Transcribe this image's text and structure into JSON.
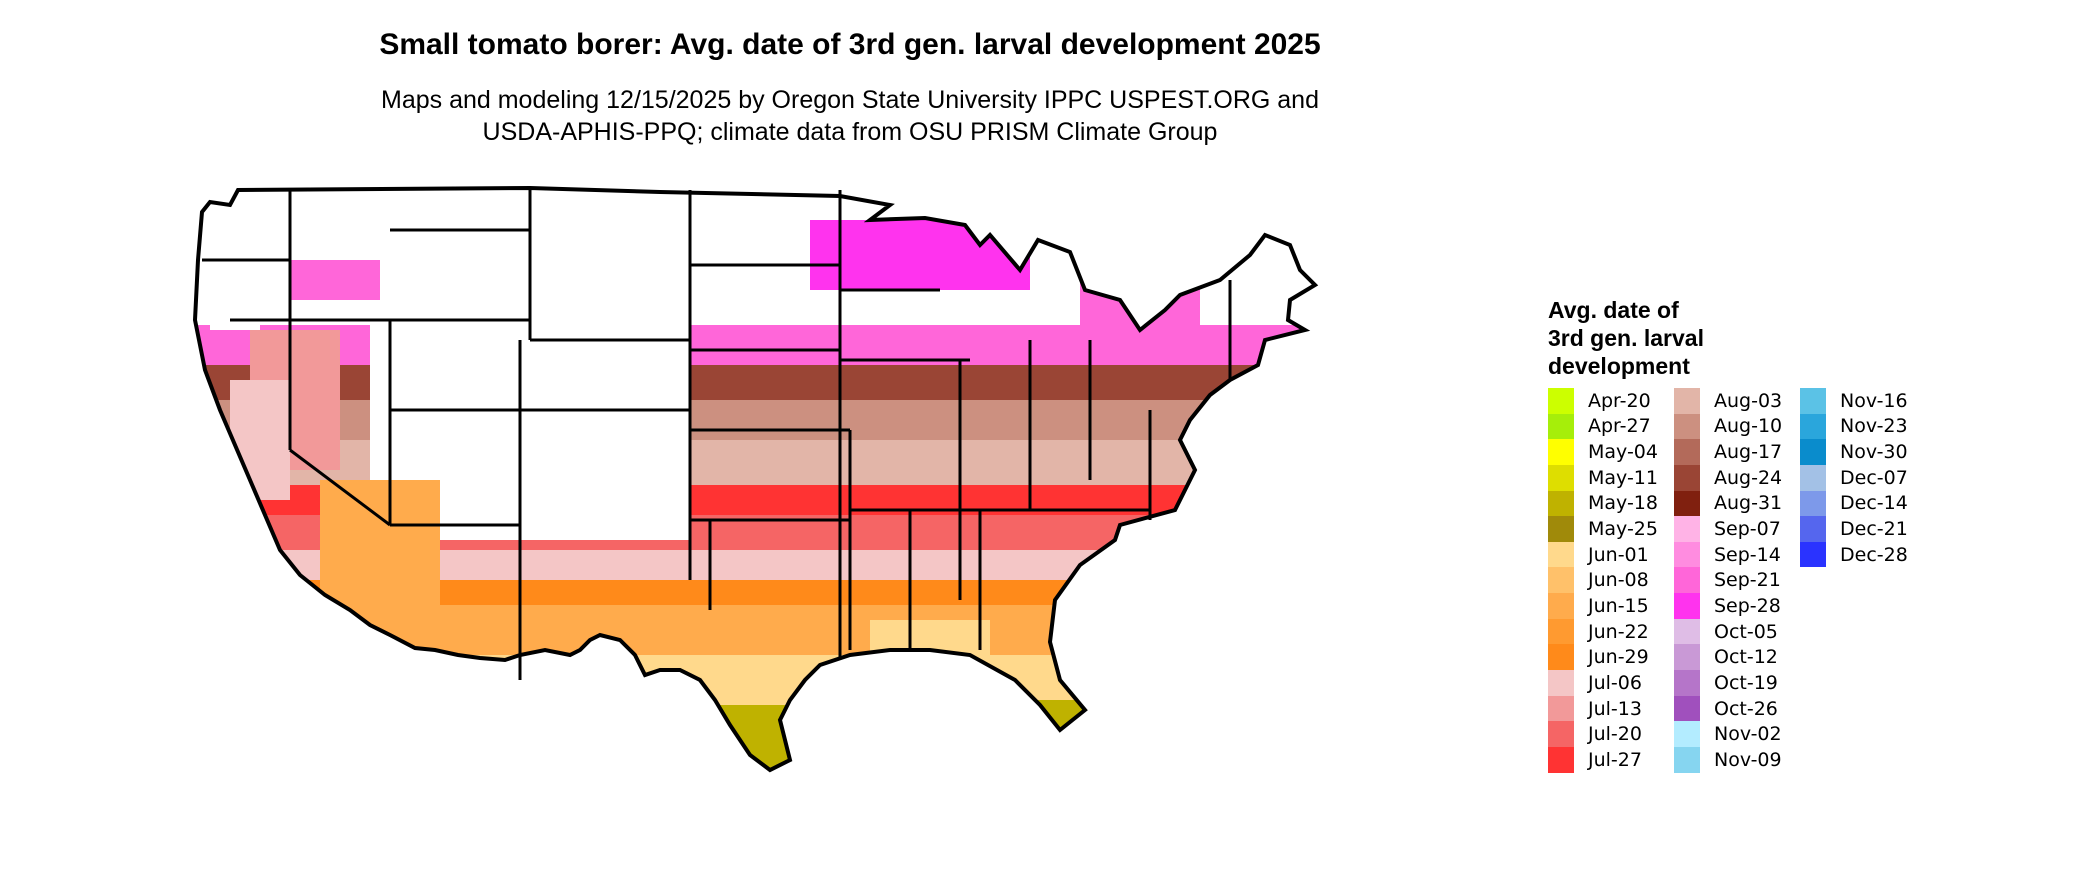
{
  "title": "Small tomato borer: Avg. date of 3rd gen. larval development 2025",
  "subtitle_line1": "Maps and modeling 12/15/2025 by Oregon State University IPPC USPEST.ORG and",
  "subtitle_line2": "USDA-APHIS-PPQ; climate data from OSU PRISM Climate Group",
  "legend": {
    "title_lines": [
      "Avg. date of",
      "3rd gen. larval",
      "development"
    ],
    "columns": [
      [
        {
          "label": "Apr-20",
          "color": "#ccff00"
        },
        {
          "label": "Apr-27",
          "color": "#a6ee0a"
        },
        {
          "label": "May-04",
          "color": "#ffff00"
        },
        {
          "label": "May-11",
          "color": "#dede00"
        },
        {
          "label": "May-18",
          "color": "#bfb200"
        },
        {
          "label": "May-25",
          "color": "#a08a0a"
        },
        {
          "label": "Jun-01",
          "color": "#ffd98c"
        },
        {
          "label": "Jun-08",
          "color": "#ffc16a"
        },
        {
          "label": "Jun-15",
          "color": "#ffab4c"
        },
        {
          "label": "Jun-22",
          "color": "#ff9a30"
        },
        {
          "label": "Jun-29",
          "color": "#ff8a1a"
        },
        {
          "label": "Jul-06",
          "color": "#f4c6c6"
        },
        {
          "label": "Jul-13",
          "color": "#f29999"
        },
        {
          "label": "Jul-20",
          "color": "#f56565"
        },
        {
          "label": "Jul-27",
          "color": "#ff3333"
        }
      ],
      [
        {
          "label": "Aug-03",
          "color": "#e2b5a8"
        },
        {
          "label": "Aug-10",
          "color": "#cc9080"
        },
        {
          "label": "Aug-17",
          "color": "#b36a5a"
        },
        {
          "label": "Aug-24",
          "color": "#9a4535"
        },
        {
          "label": "Aug-31",
          "color": "#80200f"
        },
        {
          "label": "Sep-07",
          "color": "#ffb3e6"
        },
        {
          "label": "Sep-14",
          "color": "#ff8ce0"
        },
        {
          "label": "Sep-21",
          "color": "#ff66d9"
        },
        {
          "label": "Sep-28",
          "color": "#ff33ee"
        },
        {
          "label": "Oct-05",
          "color": "#dfbde6"
        },
        {
          "label": "Oct-12",
          "color": "#c999d6"
        },
        {
          "label": "Oct-19",
          "color": "#b575c9"
        },
        {
          "label": "Oct-26",
          "color": "#a050bd"
        },
        {
          "label": "Nov-02",
          "color": "#b3ecff"
        },
        {
          "label": "Nov-09",
          "color": "#86d5f0"
        }
      ],
      [
        {
          "label": "Nov-16",
          "color": "#5bc2e6"
        },
        {
          "label": "Nov-23",
          "color": "#2aa6dc"
        },
        {
          "label": "Nov-30",
          "color": "#0a8ccc"
        },
        {
          "label": "Dec-07",
          "color": "#a3c1e6"
        },
        {
          "label": "Dec-14",
          "color": "#7d99ea"
        },
        {
          "label": "Dec-21",
          "color": "#5566ee"
        },
        {
          "label": "Dec-28",
          "color": "#2a33ff"
        }
      ]
    ]
  }
}
